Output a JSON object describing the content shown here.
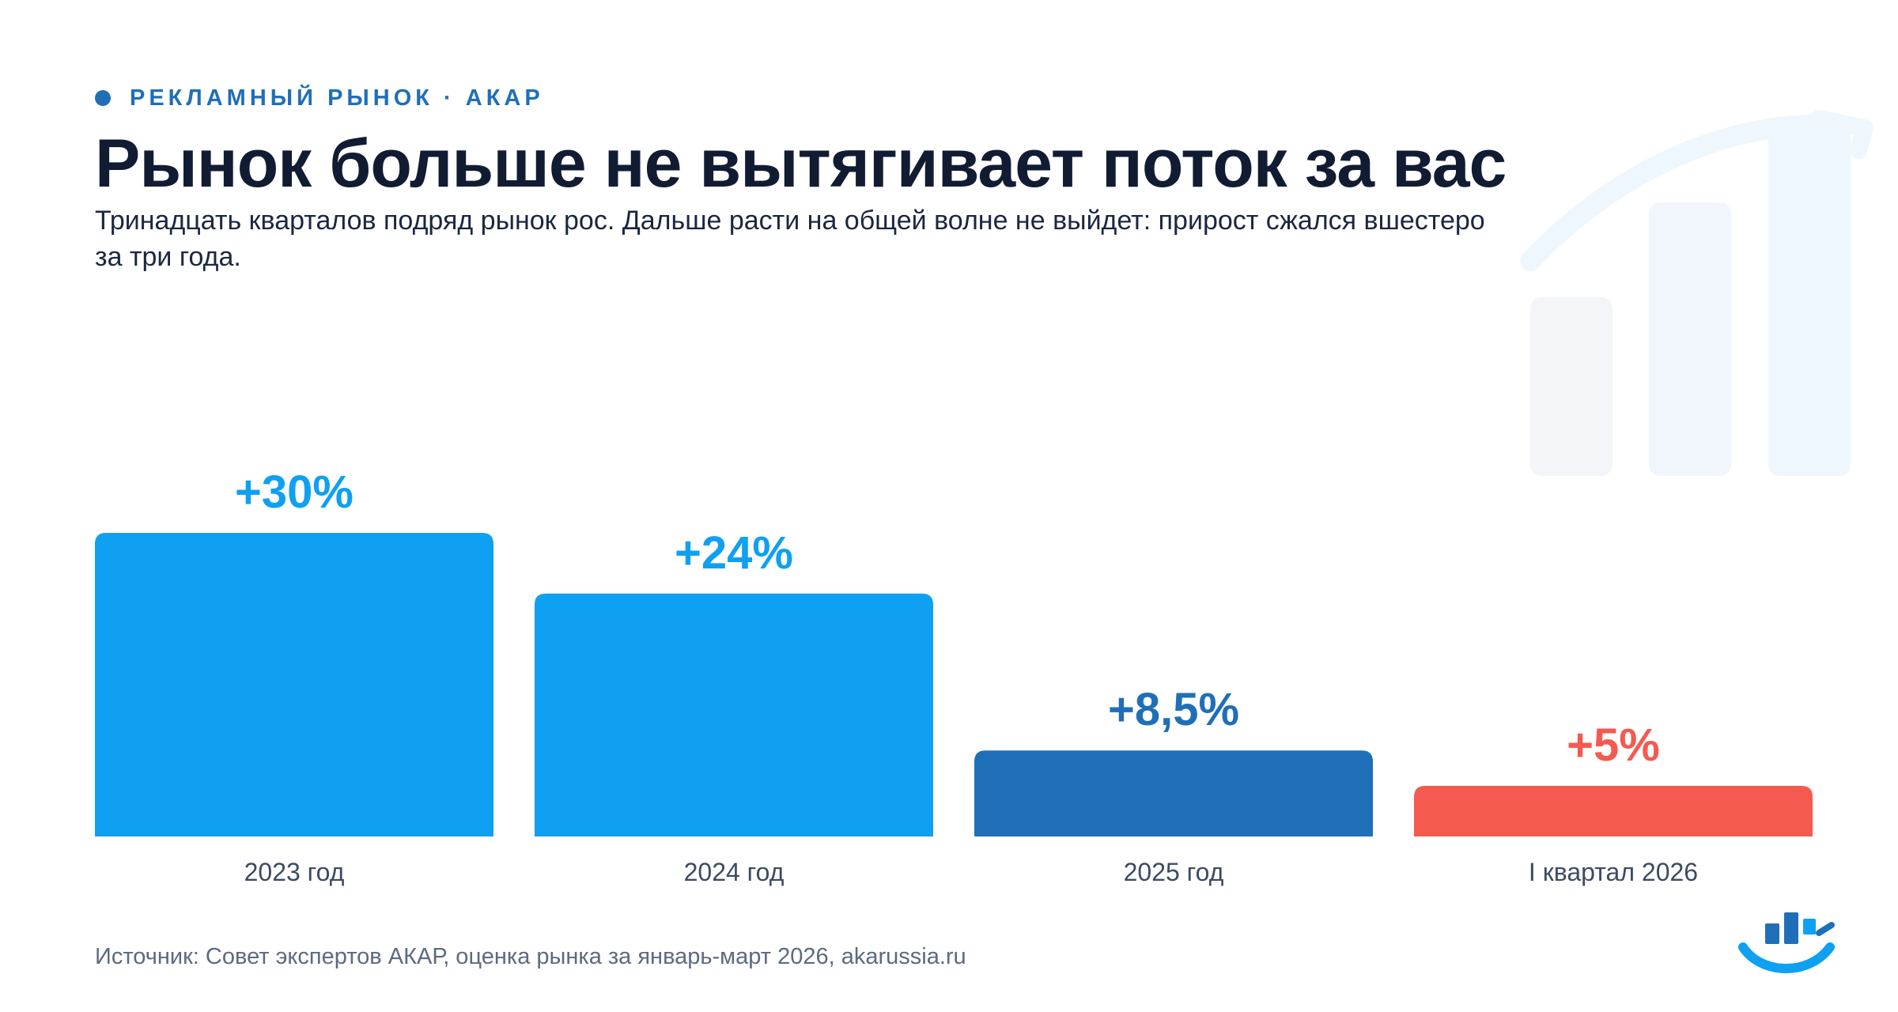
{
  "header": {
    "eyebrow": "РЕКЛАМНЫЙ РЫНОК · АКАР",
    "title": "Рынок больше не вытягивает поток за вас",
    "subtitle": "Тринадцать кварталов подряд рынок рос. Дальше расти на общей волне не выйдет: прирост сжался вшестеро за три года."
  },
  "chart_data": {
    "type": "bar",
    "categories": [
      "2023 год",
      "2024 год",
      "2025 год",
      "I квартал 2026"
    ],
    "values": [
      30,
      24,
      8.5,
      5
    ],
    "value_labels": [
      "+30%",
      "+24%",
      "+8,5%",
      "+5%"
    ],
    "colors": [
      "#0fa0f2",
      "#0fa0f2",
      "#1f6fb8",
      "#f55a51"
    ],
    "label_colors": [
      "#0fa0f2",
      "#0fa0f2",
      "#1f6fb8",
      "#f55a51"
    ],
    "title": "",
    "xlabel": "",
    "ylabel": "",
    "ylim": [
      0,
      30
    ],
    "grid": false,
    "legend": "none"
  },
  "footer": {
    "source": "Источник: Совет экспертов АКАР, оценка рынка за январь-март 2026, akarussia.ru"
  },
  "brand": {
    "accent": "#1f6fb8",
    "bright": "#0fa0f2",
    "alert": "#f55a51"
  }
}
